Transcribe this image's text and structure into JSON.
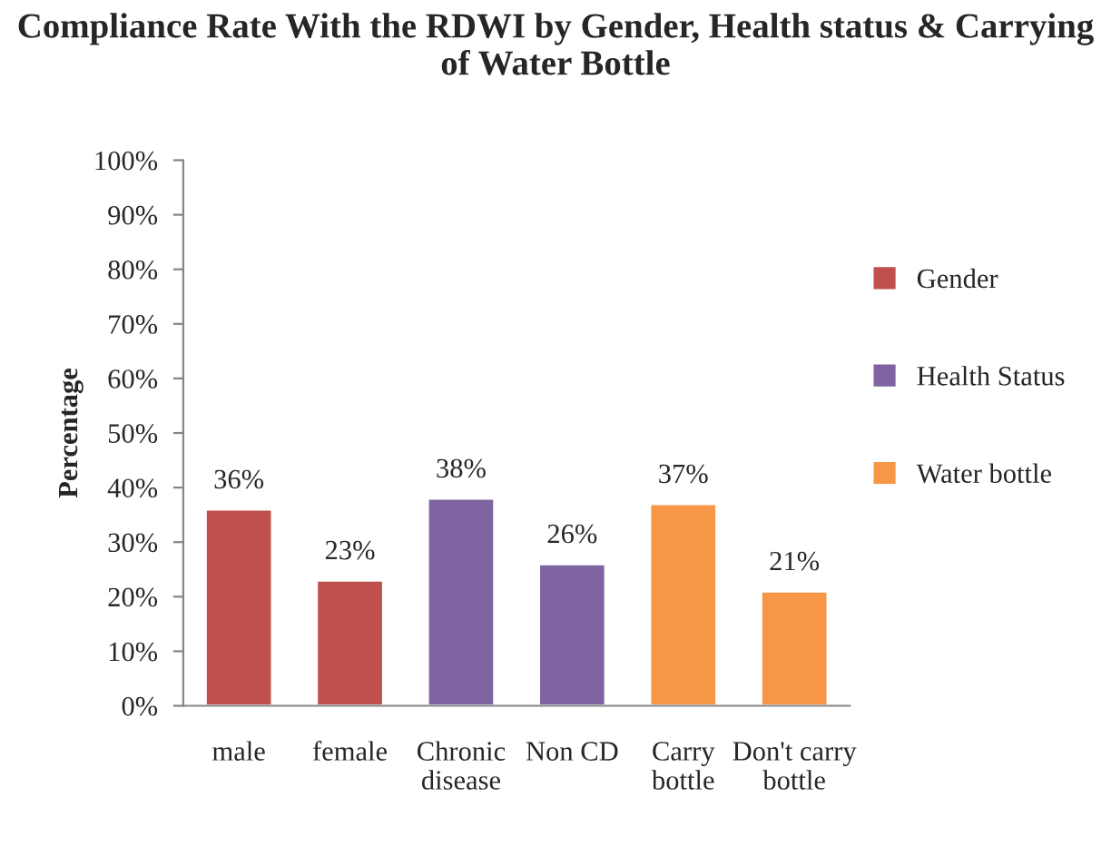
{
  "chart_data": {
    "type": "bar",
    "title": "Compliance Rate With the RDWI by Gender, Health status & Carrying of Water Bottle",
    "ylabel": "Percentage",
    "categories": [
      "male",
      "female",
      "Chronic\ndisease",
      "Non CD",
      "Carry\nbottle",
      "Don't carry\nbottle"
    ],
    "series": [
      {
        "name": "Gender",
        "color": "#c0504d",
        "values": [
          36,
          23,
          null,
          null,
          null,
          null
        ],
        "value_labels": [
          "36%",
          "23%",
          null,
          null,
          null,
          null
        ]
      },
      {
        "name": "Health Status",
        "color": "#8064a2",
        "values": [
          null,
          null,
          38,
          26,
          null,
          null
        ],
        "value_labels": [
          null,
          null,
          "38%",
          "26%",
          null,
          null
        ]
      },
      {
        "name": "Water bottle",
        "color": "#f79646",
        "values": [
          null,
          null,
          null,
          null,
          37,
          21
        ],
        "value_labels": [
          null,
          null,
          null,
          null,
          "37%",
          "21%"
        ]
      }
    ],
    "ylim": [
      0,
      100
    ],
    "yticks": [
      {
        "value": 0,
        "label": "0%"
      },
      {
        "value": 10,
        "label": "10%"
      },
      {
        "value": 20,
        "label": "20%"
      },
      {
        "value": 30,
        "label": "30%"
      },
      {
        "value": 40,
        "label": "40%"
      },
      {
        "value": 50,
        "label": "50%"
      },
      {
        "value": 60,
        "label": "60%"
      },
      {
        "value": 70,
        "label": "70%"
      },
      {
        "value": 80,
        "label": "80%"
      },
      {
        "value": 90,
        "label": "90%"
      },
      {
        "value": 100,
        "label": "100%"
      }
    ],
    "grid": false,
    "legend": "right"
  }
}
